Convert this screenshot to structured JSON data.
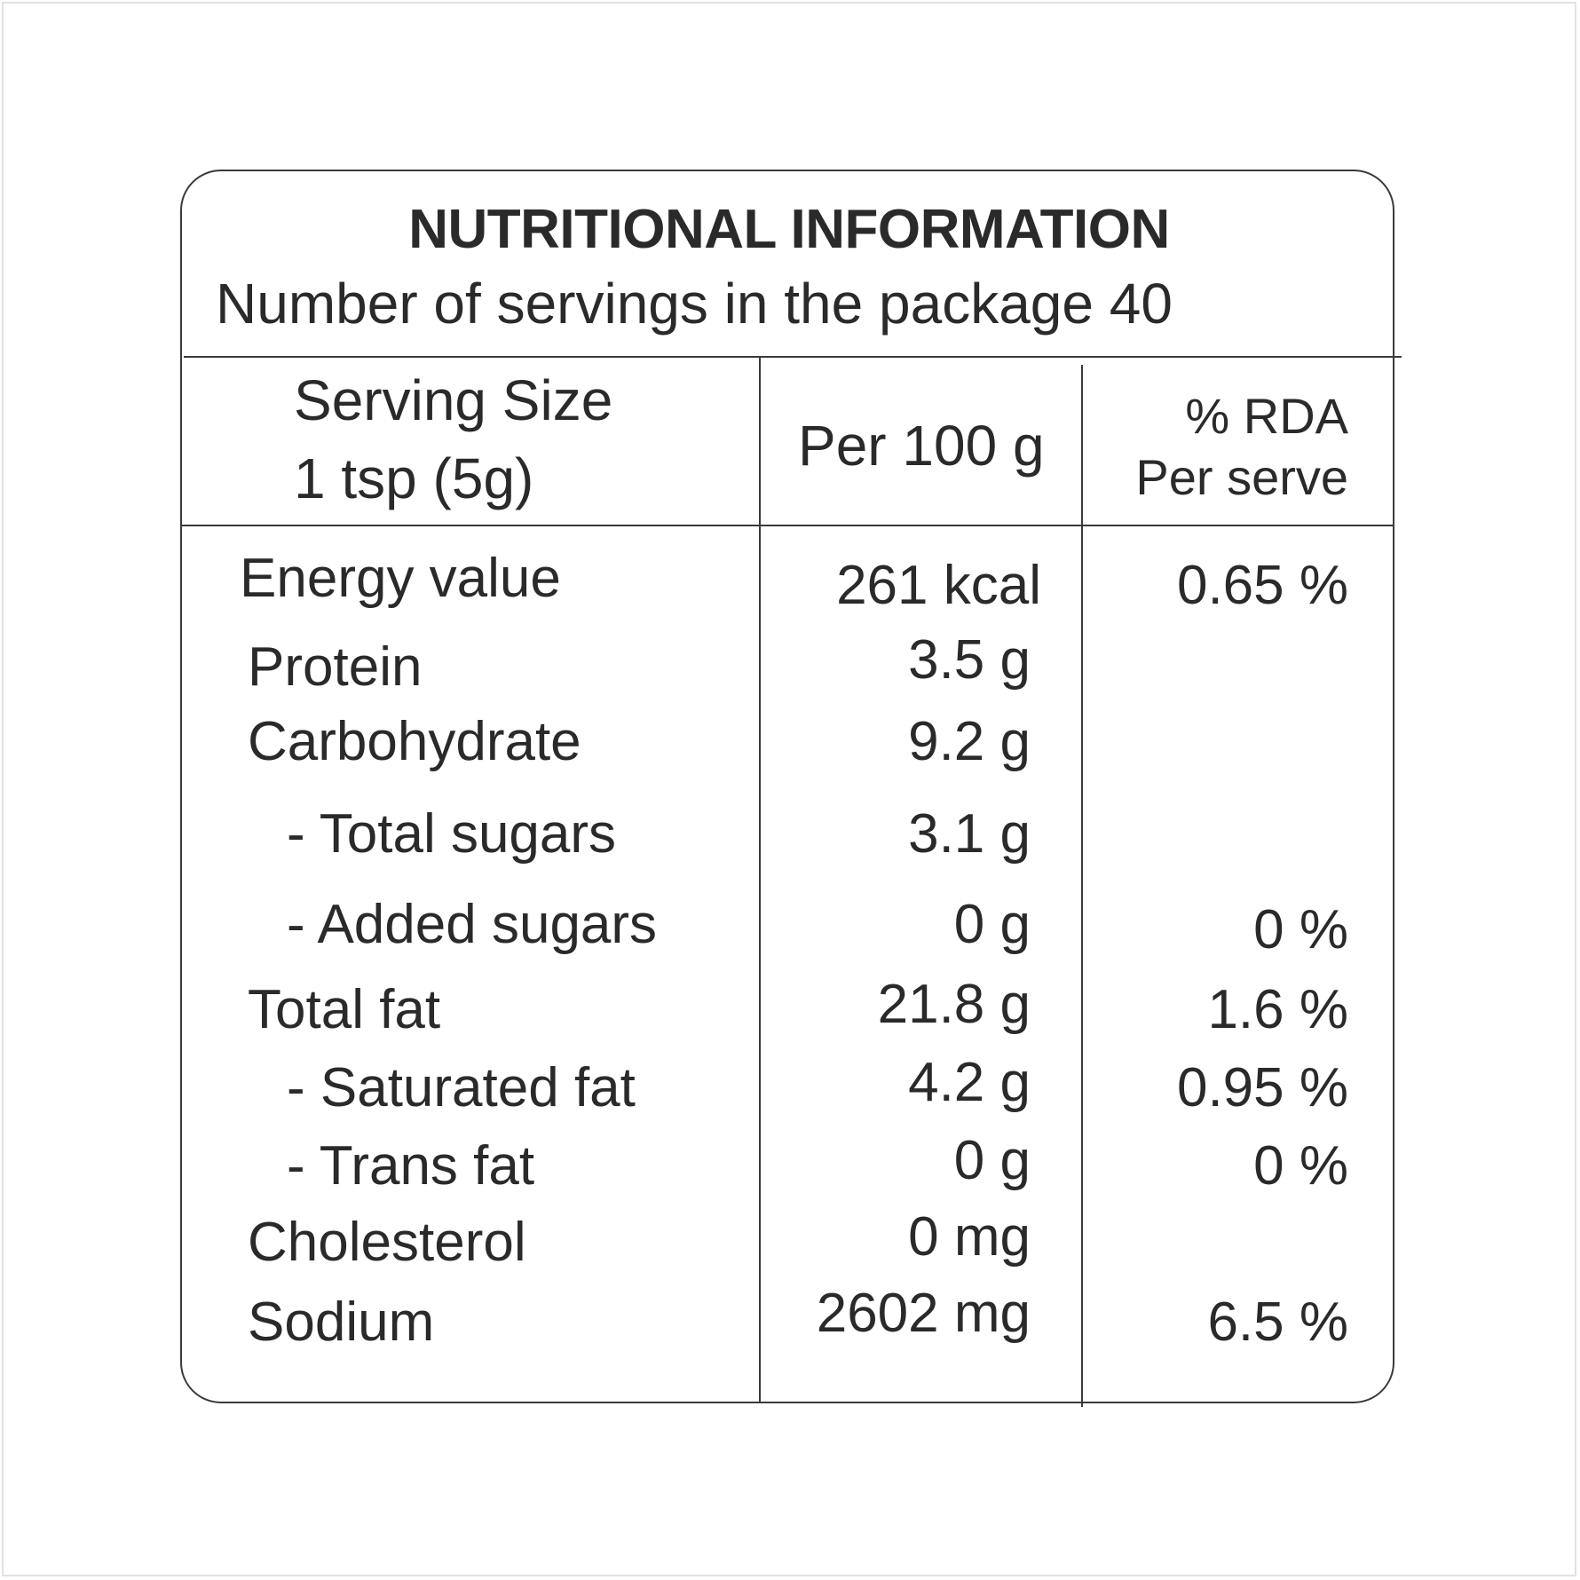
{
  "label": {
    "title": "NUTRITIONAL INFORMATION",
    "servings_line": "Number of servings in the package 40",
    "header": {
      "serving_size_label": "Serving Size",
      "serving_size_value": "1 tsp (5g)",
      "per_100g": "Per 100 g",
      "rda_line1": "% RDA",
      "rda_line2": "Per serve"
    },
    "rows": [
      {
        "name": "Energy value",
        "per100": "261 kcal",
        "rda": "0.65 %"
      },
      {
        "name": "Protein",
        "per100": "3.5 g",
        "rda": ""
      },
      {
        "name": "Carbohydrate",
        "per100": "9.2 g",
        "rda": ""
      },
      {
        "name": "- Total sugars",
        "per100": "3.1 g",
        "rda": ""
      },
      {
        "name": "- Added sugars",
        "per100": "0 g",
        "rda": "0 %"
      },
      {
        "name": "Total fat",
        "per100": "21.8 g",
        "rda": "1.6 %"
      },
      {
        "name": "- Saturated fat",
        "per100": "4.2 g",
        "rda": "0.95 %"
      },
      {
        "name": "- Trans fat",
        "per100": "0 g",
        "rda": "0 %"
      },
      {
        "name": "Cholesterol",
        "per100": "0 mg",
        "rda": ""
      },
      {
        "name": "Sodium",
        "per100": "2602 mg",
        "rda": "6.5 %"
      }
    ]
  }
}
